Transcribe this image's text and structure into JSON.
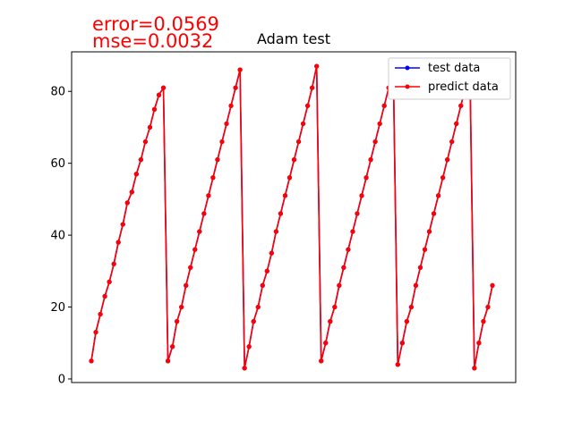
{
  "annotations": {
    "error": "error=0.0569",
    "mse": "mse=0.0032"
  },
  "chart_data": {
    "type": "line",
    "title": "Adam test",
    "xlabel": "",
    "ylabel": "",
    "ylim": [
      -1,
      91
    ],
    "yticks": [
      0,
      20,
      40,
      60,
      80
    ],
    "xticks": [],
    "grid": false,
    "legend_position": "top-right",
    "x": [
      0,
      1,
      2,
      3,
      4,
      5,
      6,
      7,
      8,
      9,
      10,
      11,
      12,
      13,
      14,
      15,
      16,
      17,
      18,
      19,
      20,
      21,
      22,
      23,
      24,
      25,
      26,
      27,
      28,
      29,
      30,
      31,
      32,
      33,
      34,
      35,
      36,
      37,
      38,
      39,
      40,
      41,
      42,
      43,
      44,
      45,
      46,
      47,
      48,
      49,
      50,
      51,
      52,
      53,
      54,
      55,
      56,
      57,
      58,
      59,
      60,
      61,
      62,
      63,
      64,
      65,
      66,
      67,
      68,
      69,
      70,
      71,
      72,
      73,
      74,
      75,
      76,
      77,
      78,
      79,
      80,
      81,
      82,
      83,
      84,
      85,
      86,
      87,
      88,
      89
    ],
    "series": [
      {
        "name": "test data",
        "color": "#0000ff",
        "values": [
          5,
          13,
          18,
          23,
          27,
          32,
          38,
          43,
          49,
          52,
          57,
          61,
          66,
          70,
          75,
          79,
          81,
          5,
          9,
          16,
          20,
          26,
          31,
          36,
          41,
          46,
          51,
          56,
          61,
          66,
          71,
          76,
          81,
          86,
          3,
          9,
          16,
          20,
          26,
          30,
          35,
          41,
          46,
          51,
          56,
          61,
          66,
          71,
          76,
          81,
          87,
          5,
          10,
          16,
          20,
          26,
          31,
          36,
          41,
          46,
          51,
          56,
          61,
          66,
          71,
          76,
          81,
          87,
          4,
          10,
          16,
          20,
          26,
          31,
          36,
          41,
          46,
          51,
          56,
          61,
          66,
          71,
          76,
          81,
          87,
          3,
          10,
          16,
          20,
          26
        ]
      },
      {
        "name": "predict data",
        "color": "#ff0000",
        "values": [
          5,
          13,
          18,
          23,
          27,
          32,
          38,
          43,
          49,
          52,
          57,
          61,
          66,
          70,
          75,
          79,
          81,
          5,
          9,
          16,
          20,
          26,
          31,
          36,
          41,
          46,
          51,
          56,
          61,
          66,
          71,
          76,
          81,
          86,
          3,
          9,
          16,
          20,
          26,
          30,
          35,
          41,
          46,
          51,
          56,
          61,
          66,
          71,
          76,
          81,
          87,
          5,
          10,
          16,
          20,
          26,
          31,
          36,
          41,
          46,
          51,
          56,
          61,
          66,
          71,
          76,
          81,
          87,
          4,
          10,
          16,
          20,
          26,
          31,
          36,
          41,
          46,
          51,
          56,
          61,
          66,
          71,
          76,
          81,
          87,
          3,
          10,
          16,
          20,
          26
        ]
      }
    ]
  }
}
